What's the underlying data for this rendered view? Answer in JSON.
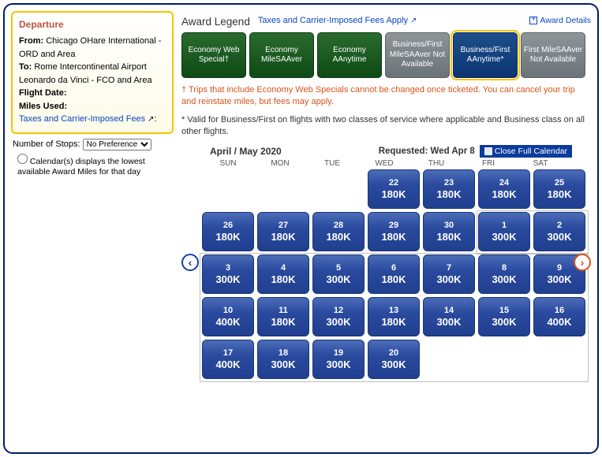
{
  "departure": {
    "heading": "Departure",
    "from_label": "From:",
    "from": "Chicago OHare International - ORD and Area",
    "to_label": "To:",
    "to": "Rome Intercontinental Airport Leonardo da Vinci - FCO and Area",
    "flight_date_label": "Flight Date:",
    "miles_used_label": "Miles Used:",
    "taxes_link": "Taxes and Carrier-Imposed Fees"
  },
  "stops": {
    "label": "Number of Stops:",
    "value": "No Preference",
    "calendar_note": "Calendar(s) displays the lowest available Award Miles for that day"
  },
  "legend": {
    "title": "Award Legend",
    "fees_link": "Taxes and Carrier-Imposed Fees Apply",
    "award_details": "Award Details",
    "cards": [
      {
        "label": "Economy Web Special†",
        "cls": "green"
      },
      {
        "label": "Economy MileSAAver",
        "cls": "green"
      },
      {
        "label": "Economy AAnytime",
        "cls": "green"
      },
      {
        "label": "Business/First MileSAAver Not Available",
        "cls": "grey"
      },
      {
        "label": "Business/First AAnytime*",
        "cls": "blue",
        "selected": true
      },
      {
        "label": "First MileSAAver Not Available",
        "cls": "grey"
      }
    ]
  },
  "notes": {
    "web_special": "† Trips that include Economy Web Specials cannot be changed once ticketed. You can cancel your trip and reinstate miles, but fees may apply.",
    "biz_first": "* Valid for Business/First on flights with two classes of service where applicable and Business class on all other flights."
  },
  "calendar": {
    "month_label": "April / May 2020",
    "requested": "Requested: Wed Apr 8",
    "close_label": "Close Full Calendar",
    "dow": [
      "SUN",
      "MON",
      "TUE",
      "WED",
      "THU",
      "FRI",
      "SAT"
    ],
    "cells": [
      null,
      null,
      null,
      {
        "d": "22",
        "m": "180K"
      },
      {
        "d": "23",
        "m": "180K"
      },
      {
        "d": "24",
        "m": "180K"
      },
      {
        "d": "25",
        "m": "180K"
      },
      {
        "d": "26",
        "m": "180K"
      },
      {
        "d": "27",
        "m": "180K"
      },
      {
        "d": "28",
        "m": "180K"
      },
      {
        "d": "29",
        "m": "180K"
      },
      {
        "d": "30",
        "m": "180K"
      },
      {
        "d": "1",
        "m": "300K"
      },
      {
        "d": "2",
        "m": "300K"
      },
      {
        "d": "3",
        "m": "300K"
      },
      {
        "d": "4",
        "m": "180K"
      },
      {
        "d": "5",
        "m": "300K"
      },
      {
        "d": "6",
        "m": "180K"
      },
      {
        "d": "7",
        "m": "300K"
      },
      {
        "d": "8",
        "m": "300K"
      },
      {
        "d": "9",
        "m": "300K"
      },
      {
        "d": "10",
        "m": "400K"
      },
      {
        "d": "11",
        "m": "180K"
      },
      {
        "d": "12",
        "m": "300K"
      },
      {
        "d": "13",
        "m": "180K"
      },
      {
        "d": "14",
        "m": "300K"
      },
      {
        "d": "15",
        "m": "300K"
      },
      {
        "d": "16",
        "m": "400K"
      },
      {
        "d": "17",
        "m": "400K"
      },
      {
        "d": "18",
        "m": "300K"
      },
      {
        "d": "19",
        "m": "300K"
      },
      {
        "d": "20",
        "m": "300K"
      },
      null,
      null,
      null
    ]
  }
}
